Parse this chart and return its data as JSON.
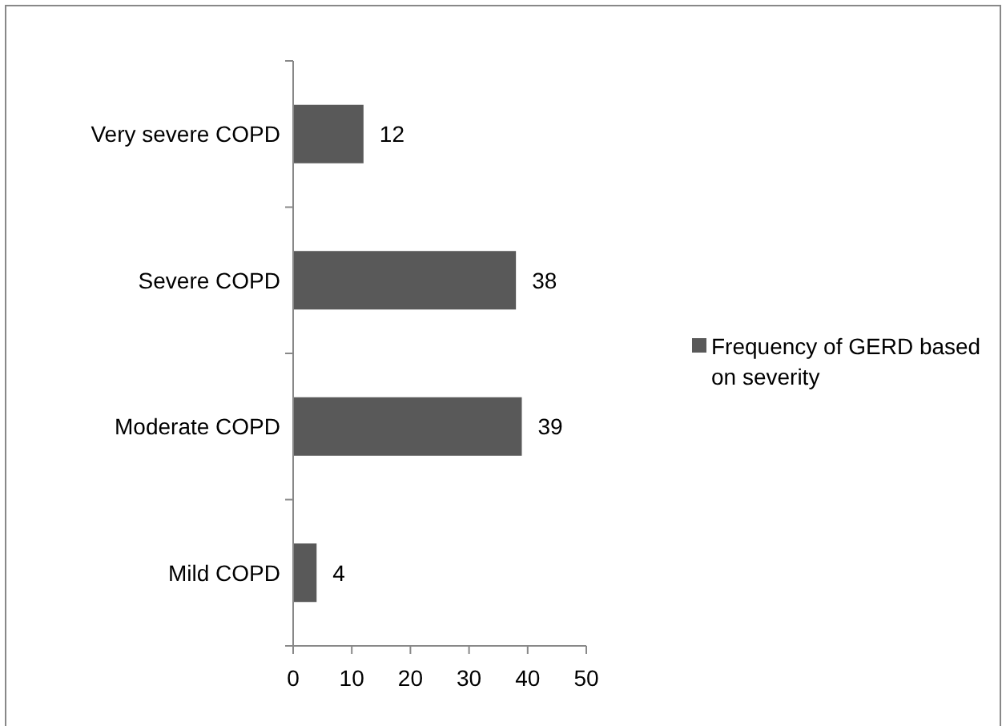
{
  "chart_data": {
    "type": "bar",
    "orientation": "horizontal",
    "categories": [
      "Very severe COPD",
      "Severe COPD",
      "Moderate COPD",
      "Mild COPD"
    ],
    "series": [
      {
        "name": "Frequency of GERD based on severity",
        "color": "#595959",
        "values": [
          12,
          38,
          39,
          4
        ]
      }
    ],
    "xlim": [
      0,
      50
    ],
    "xticks": [
      0,
      10,
      20,
      30,
      40,
      50
    ],
    "data_labels": true,
    "legend": "right"
  }
}
